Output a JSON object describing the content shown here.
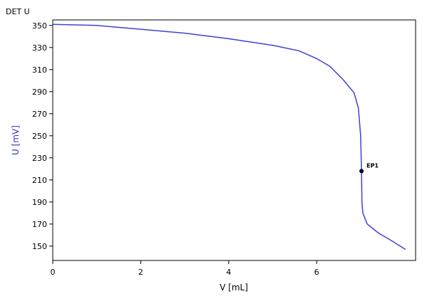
{
  "chart_data": {
    "type": "line",
    "title": "DET U",
    "xlabel": "V [mL]",
    "ylabel": "U [mV]",
    "x": [
      0,
      1,
      2,
      3,
      4,
      5,
      5.6,
      6,
      6.3,
      6.6,
      6.85,
      6.95,
      7.0,
      7.02,
      7.03,
      7.05,
      7.15,
      7.4,
      7.7,
      8.02
    ],
    "series": [
      {
        "name": "U",
        "color": "#4040d8",
        "values": [
          351,
          350,
          346.5,
          343,
          338,
          332,
          327,
          320,
          313,
          301,
          289,
          275,
          250,
          218,
          190,
          180,
          170,
          162,
          155,
          147
        ]
      }
    ],
    "annotations": [
      {
        "text": "EP1",
        "x": 7.02,
        "y": 218
      }
    ],
    "xlim": [
      0,
      8.25
    ],
    "xticks": [
      0,
      2,
      4,
      6
    ],
    "ylim": [
      137,
      355
    ],
    "yticks": [
      150,
      170,
      190,
      210,
      230,
      250,
      270,
      290,
      310,
      330,
      350
    ]
  }
}
